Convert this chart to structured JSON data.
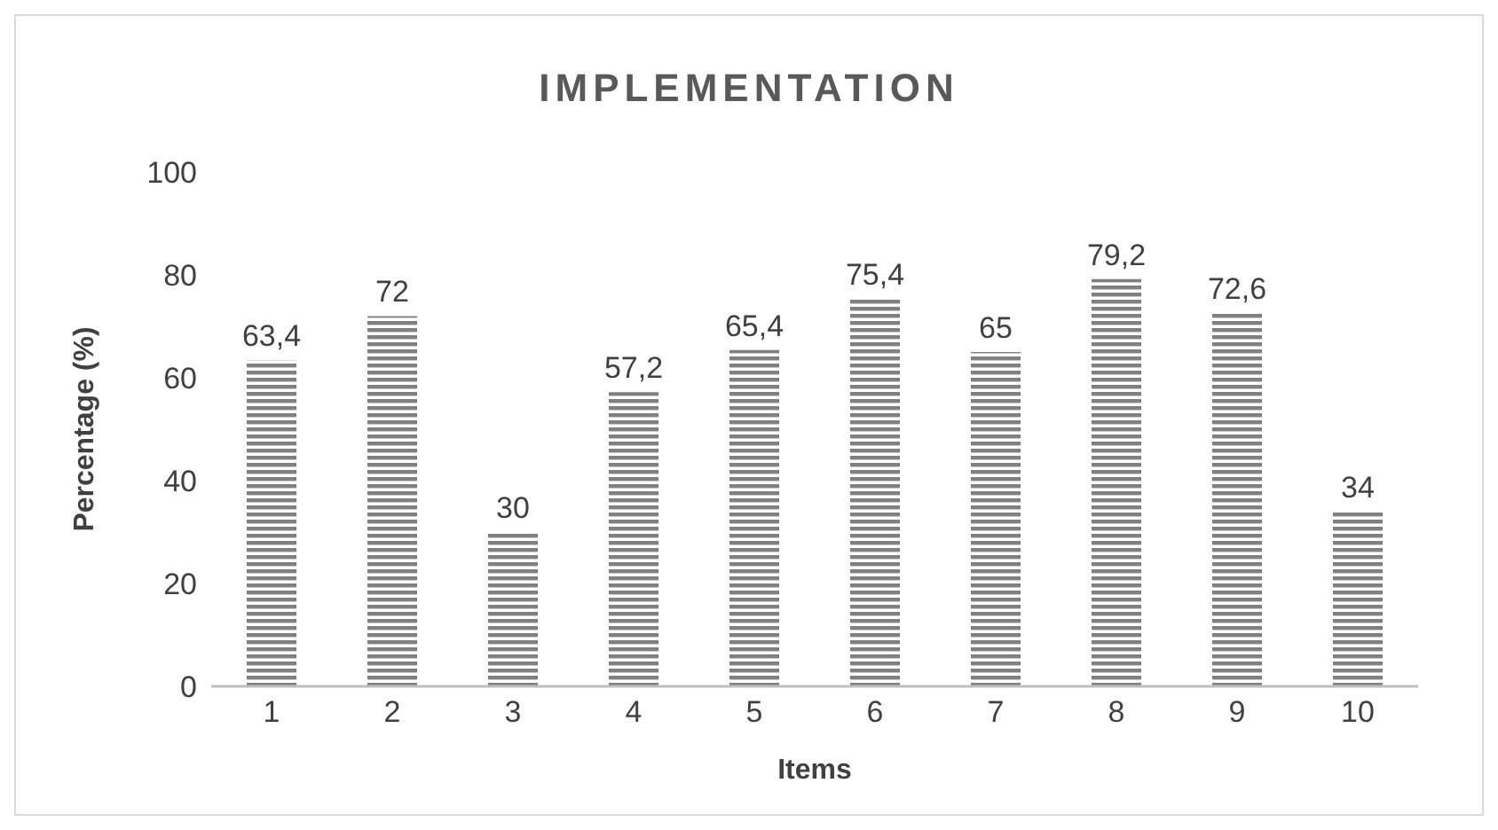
{
  "chart_data": {
    "type": "bar",
    "title": "IMPLEMENTATION",
    "xlabel": "Items",
    "ylabel": "Percentage (%)",
    "categories": [
      "1",
      "2",
      "3",
      "4",
      "5",
      "6",
      "7",
      "8",
      "9",
      "10"
    ],
    "values": [
      63.4,
      72,
      30,
      57.2,
      65.4,
      75.4,
      65,
      79.2,
      72.6,
      34
    ],
    "value_labels": [
      "63,4",
      "72",
      "30",
      "57,2",
      "65,4",
      "75,4",
      "65",
      "79,2",
      "72,6",
      "34"
    ],
    "color": "#7f7f7f",
    "ylim": [
      0,
      100
    ],
    "yticks": [
      0,
      20,
      40,
      60,
      80,
      100
    ],
    "grid": false
  }
}
